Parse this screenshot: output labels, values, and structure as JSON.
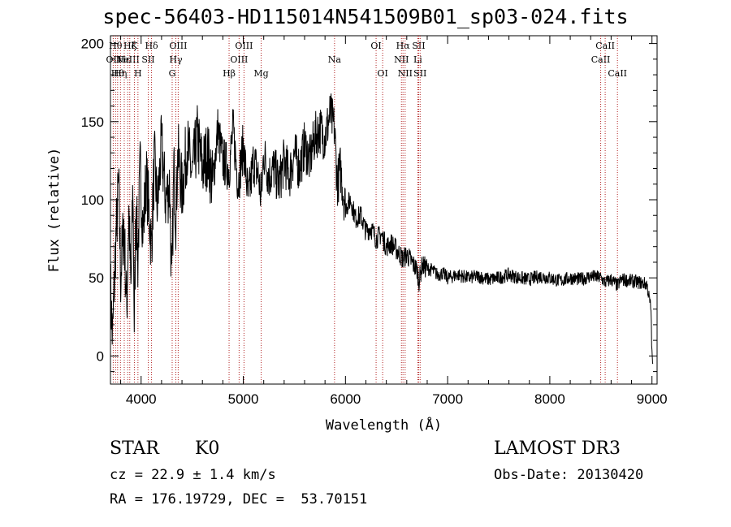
{
  "chart_data": {
    "type": "line",
    "title": "spec-56403-HD115014N541509B01_sp03-024.fits",
    "xlabel": "Wavelength (Å)",
    "ylabel": "Flux (relative)",
    "xlim": [
      3700,
      9050
    ],
    "ylim": [
      -18,
      205
    ],
    "xticks": [
      4000,
      5000,
      6000,
      7000,
      8000,
      9000
    ],
    "yticks": [
      0,
      50,
      100,
      150,
      200
    ],
    "series": [
      {
        "name": "flux",
        "x": [
          3700,
          3720,
          3750,
          3780,
          3800,
          3830,
          3860,
          3880,
          3900,
          3920,
          3933,
          3950,
          3968,
          3990,
          4020,
          4050,
          4080,
          4101,
          4130,
          4160,
          4200,
          4240,
          4280,
          4300,
          4320,
          4340,
          4360,
          4400,
          4450,
          4500,
          4550,
          4600,
          4650,
          4700,
          4750,
          4800,
          4861,
          4900,
          4950,
          5000,
          5050,
          5100,
          5150,
          5175,
          5200,
          5250,
          5300,
          5350,
          5400,
          5450,
          5500,
          5550,
          5600,
          5650,
          5700,
          5750,
          5800,
          5850,
          5893,
          5920,
          5950,
          6000,
          6050,
          6100,
          6150,
          6200,
          6250,
          6300,
          6350,
          6400,
          6450,
          6500,
          6563,
          6600,
          6650,
          6700,
          6720,
          6750,
          6800,
          6850,
          6900,
          6950,
          7000,
          7100,
          7200,
          7300,
          7400,
          7500,
          7600,
          7700,
          7800,
          7900,
          8000,
          8100,
          8200,
          8300,
          8400,
          8500,
          8542,
          8600,
          8662,
          8700,
          8800,
          8880,
          8950,
          8970,
          8990,
          9000,
          9010
        ],
        "values": [
          45,
          10,
          70,
          110,
          50,
          85,
          30,
          95,
          40,
          110,
          20,
          100,
          60,
          120,
          80,
          115,
          90,
          70,
          125,
          95,
          135,
          100,
          110,
          40,
          120,
          90,
          130,
          105,
          135,
          115,
          140,
          120,
          130,
          110,
          145,
          125,
          120,
          145,
          110,
          135,
          100,
          125,
          115,
          100,
          130,
          115,
          120,
          110,
          125,
          115,
          130,
          120,
          135,
          125,
          140,
          145,
          140,
          155,
          145,
          110,
          120,
          95,
          100,
          88,
          90,
          80,
          82,
          75,
          78,
          70,
          72,
          68,
          62,
          65,
          60,
          55,
          48,
          58,
          56,
          55,
          52,
          53,
          50,
          52,
          50,
          51,
          49,
          50,
          52,
          50,
          49,
          51,
          50,
          48,
          50,
          49,
          51,
          50,
          47,
          49,
          45,
          49,
          48,
          47,
          46,
          38,
          30,
          0,
          -5
        ]
      }
    ],
    "lines": [
      {
        "wl": 3727,
        "label": "OII",
        "row": 1
      },
      {
        "wl": 3750,
        "label": "Hθ",
        "row": 0
      },
      {
        "wl": 3770,
        "label": "Hθ",
        "row": 2
      },
      {
        "wl": 3798,
        "label": "Hη",
        "row": 2
      },
      {
        "wl": 3835,
        "label": "Hε",
        "row": 1
      },
      {
        "wl": 3869,
        "label": "NeIII",
        "row": 1
      },
      {
        "wl": 3889,
        "label": "Hζ",
        "row": 0
      },
      {
        "wl": 3934,
        "label": "K",
        "row": 0
      },
      {
        "wl": 3969,
        "label": "H",
        "row": 2
      },
      {
        "wl": 4070,
        "label": "SII",
        "row": 1
      },
      {
        "wl": 4102,
        "label": "Hδ",
        "row": 0
      },
      {
        "wl": 4304,
        "label": "G",
        "row": 2
      },
      {
        "wl": 4340,
        "label": "Hγ",
        "row": 1
      },
      {
        "wl": 4363,
        "label": "OIII",
        "row": 0
      },
      {
        "wl": 4861,
        "label": "Hβ",
        "row": 2
      },
      {
        "wl": 4959,
        "label": "OIII",
        "row": 1
      },
      {
        "wl": 5007,
        "label": "OIII",
        "row": 0
      },
      {
        "wl": 5175,
        "label": "Mg",
        "row": 2
      },
      {
        "wl": 5893,
        "label": "Na",
        "row": 1
      },
      {
        "wl": 6300,
        "label": "OI",
        "row": 0
      },
      {
        "wl": 6364,
        "label": "OI",
        "row": 2
      },
      {
        "wl": 6548,
        "label": "NII",
        "row": 1
      },
      {
        "wl": 6563,
        "label": "Hα",
        "row": 0
      },
      {
        "wl": 6584,
        "label": "NII",
        "row": 2
      },
      {
        "wl": 6708,
        "label": "Li",
        "row": 1
      },
      {
        "wl": 6717,
        "label": "SII",
        "row": 0
      },
      {
        "wl": 6731,
        "label": "SII",
        "row": 2
      },
      {
        "wl": 8498,
        "label": "CaII",
        "row": 1
      },
      {
        "wl": 8542,
        "label": "CaII",
        "row": 0
      },
      {
        "wl": 8662,
        "label": "CaII",
        "row": 2
      }
    ],
    "colors": {
      "line": "#000000",
      "marker": "#b22222",
      "axis": "#000000"
    }
  },
  "info": {
    "class_label": "STAR",
    "subclass": "K0",
    "survey": "LAMOST DR3",
    "cz_text": "cz = 22.9 ± 1.4 km/s",
    "obs_date": "Obs-Date: 20130420",
    "coords": "RA = 176.19729, DEC =  53.70151"
  }
}
